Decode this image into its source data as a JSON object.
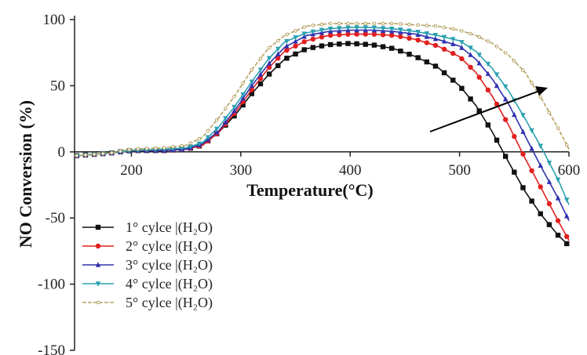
{
  "chart_data": {
    "type": "line",
    "title": "",
    "xlabel": "Temperature(°C)",
    "ylabel": "NO Conversion (%)",
    "xlim": [
      148,
      600
    ],
    "ylim": [
      -150,
      100
    ],
    "x_ticks": [
      200,
      300,
      400,
      500,
      600
    ],
    "y_ticks": [
      100,
      50,
      0,
      -50,
      -100,
      -150
    ],
    "x_tick_labels": [
      "200",
      "300",
      "400",
      "500",
      "600"
    ],
    "y_tick_labels": [
      "100",
      "50",
      "0",
      "-50",
      "-100",
      "-150"
    ],
    "grid": false,
    "legend_position": "lower-left",
    "annotation": "arrow pointing up-right across curves (trend with cycle number)",
    "series": [
      {
        "name": "1° cylce |(H₂O)",
        "color": "#111111",
        "marker": "square",
        "points": [
          [
            148,
            -3
          ],
          [
            180,
            -1
          ],
          [
            200,
            1
          ],
          [
            230,
            1
          ],
          [
            250,
            2
          ],
          [
            265,
            5
          ],
          [
            280,
            15
          ],
          [
            295,
            28
          ],
          [
            310,
            44
          ],
          [
            325,
            58
          ],
          [
            340,
            70
          ],
          [
            360,
            78
          ],
          [
            380,
            81
          ],
          [
            400,
            82
          ],
          [
            420,
            81
          ],
          [
            440,
            78
          ],
          [
            460,
            72
          ],
          [
            480,
            64
          ],
          [
            500,
            50
          ],
          [
            515,
            35
          ],
          [
            530,
            15
          ],
          [
            545,
            -8
          ],
          [
            560,
            -30
          ],
          [
            575,
            -48
          ],
          [
            590,
            -63
          ],
          [
            600,
            -71
          ]
        ]
      },
      {
        "name": "2° cylce |(H₂O)",
        "color": "#e02020",
        "marker": "circle",
        "points": [
          [
            148,
            -3
          ],
          [
            180,
            -1
          ],
          [
            200,
            1
          ],
          [
            230,
            1
          ],
          [
            250,
            2
          ],
          [
            265,
            5
          ],
          [
            280,
            15
          ],
          [
            295,
            30
          ],
          [
            310,
            47
          ],
          [
            325,
            63
          ],
          [
            340,
            76
          ],
          [
            360,
            84
          ],
          [
            380,
            88
          ],
          [
            400,
            89
          ],
          [
            420,
            89
          ],
          [
            440,
            88
          ],
          [
            460,
            85
          ],
          [
            480,
            80
          ],
          [
            500,
            72
          ],
          [
            515,
            60
          ],
          [
            530,
            42
          ],
          [
            545,
            20
          ],
          [
            560,
            -5
          ],
          [
            575,
            -28
          ],
          [
            590,
            -52
          ],
          [
            600,
            -67
          ]
        ]
      },
      {
        "name": "3° cylce |(H₂O)",
        "color": "#3030b0",
        "marker": "triangle",
        "points": [
          [
            148,
            -3
          ],
          [
            180,
            -1
          ],
          [
            200,
            1
          ],
          [
            230,
            1
          ],
          [
            250,
            2
          ],
          [
            265,
            6
          ],
          [
            280,
            16
          ],
          [
            295,
            32
          ],
          [
            310,
            50
          ],
          [
            325,
            66
          ],
          [
            340,
            79
          ],
          [
            360,
            88
          ],
          [
            380,
            91
          ],
          [
            400,
            92
          ],
          [
            420,
            92
          ],
          [
            440,
            91
          ],
          [
            460,
            89
          ],
          [
            480,
            85
          ],
          [
            500,
            80
          ],
          [
            515,
            70
          ],
          [
            530,
            55
          ],
          [
            545,
            36
          ],
          [
            560,
            12
          ],
          [
            575,
            -12
          ],
          [
            590,
            -35
          ],
          [
            600,
            -52
          ]
        ]
      },
      {
        "name": "4° cylce |(H₂O)",
        "color": "#2aa0b0",
        "marker": "triangle-down",
        "points": [
          [
            148,
            -3
          ],
          [
            180,
            -1
          ],
          [
            200,
            1
          ],
          [
            230,
            2
          ],
          [
            250,
            3
          ],
          [
            265,
            7
          ],
          [
            280,
            19
          ],
          [
            295,
            35
          ],
          [
            310,
            53
          ],
          [
            325,
            70
          ],
          [
            340,
            83
          ],
          [
            360,
            90
          ],
          [
            380,
            93
          ],
          [
            400,
            94
          ],
          [
            420,
            94
          ],
          [
            440,
            93
          ],
          [
            460,
            91
          ],
          [
            480,
            88
          ],
          [
            500,
            84
          ],
          [
            515,
            76
          ],
          [
            530,
            63
          ],
          [
            545,
            46
          ],
          [
            560,
            25
          ],
          [
            575,
            3
          ],
          [
            590,
            -21
          ],
          [
            600,
            -40
          ]
        ]
      },
      {
        "name": "5° cylce |(H₂O)",
        "color": "#b5a060",
        "marker": "dot",
        "points": [
          [
            148,
            -3
          ],
          [
            180,
            -1
          ],
          [
            200,
            2
          ],
          [
            230,
            3
          ],
          [
            250,
            5
          ],
          [
            265,
            11
          ],
          [
            280,
            26
          ],
          [
            295,
            43
          ],
          [
            310,
            62
          ],
          [
            325,
            78
          ],
          [
            340,
            88
          ],
          [
            360,
            95
          ],
          [
            380,
            97
          ],
          [
            400,
            97
          ],
          [
            420,
            97
          ],
          [
            440,
            97
          ],
          [
            460,
            96
          ],
          [
            480,
            95
          ],
          [
            500,
            92
          ],
          [
            515,
            88
          ],
          [
            530,
            82
          ],
          [
            545,
            73
          ],
          [
            560,
            60
          ],
          [
            575,
            40
          ],
          [
            590,
            18
          ],
          [
            600,
            2
          ]
        ]
      }
    ]
  }
}
